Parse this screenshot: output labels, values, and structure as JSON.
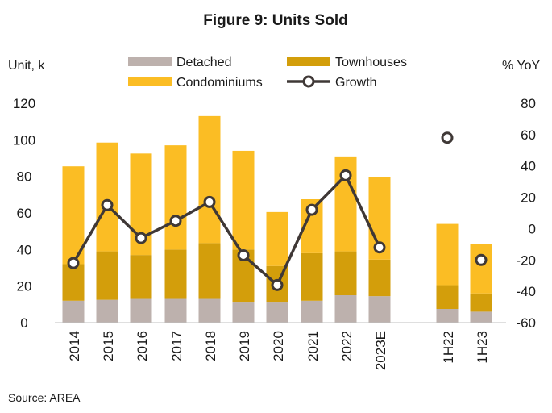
{
  "chart_data": {
    "type": "bar",
    "title": "Figure 9: Units Sold",
    "source": "Source: AREA",
    "left_axis": {
      "label": "Unit, k",
      "ylim": [
        0,
        120
      ],
      "ticks": [
        0,
        20,
        40,
        60,
        80,
        100,
        120
      ]
    },
    "right_axis": {
      "label": "% YoY",
      "ylim": [
        -60,
        80
      ],
      "ticks": [
        -60,
        -40,
        -20,
        0,
        20,
        40,
        60,
        80
      ]
    },
    "categories": [
      "2014",
      "2015",
      "2016",
      "2017",
      "2018",
      "2019",
      "2020",
      "2021",
      "2022",
      "2023E",
      "1H22",
      "1H23"
    ],
    "legend": [
      {
        "name": "Detached",
        "kind": "bar",
        "color": "#bdb1ad"
      },
      {
        "name": "Townhouses",
        "kind": "bar",
        "color": "#d39e0b"
      },
      {
        "name": "Condominiums",
        "kind": "bar",
        "color": "#fbbd24"
      },
      {
        "name": "Growth",
        "kind": "line-marker",
        "color": "#3f3836"
      }
    ],
    "series": [
      {
        "name": "Detached",
        "color": "#bdb1ad",
        "values": [
          12,
          12.5,
          13,
          13,
          13,
          11,
          11,
          12,
          15,
          14.5,
          7.5,
          6
        ]
      },
      {
        "name": "Townhouses",
        "color": "#d39e0b",
        "values": [
          20,
          26.5,
          24,
          27,
          30.5,
          29,
          20,
          26,
          24,
          20,
          13,
          10
        ]
      },
      {
        "name": "Condominiums",
        "color": "#fbbd24",
        "values": [
          53.5,
          59.5,
          55.5,
          57,
          69.5,
          54,
          29.5,
          29.5,
          51.5,
          45,
          33.5,
          27
        ]
      },
      {
        "name": "Growth",
        "axis": "right",
        "color": "#3f3836",
        "values": [
          -22,
          15,
          -6,
          5,
          17,
          -17,
          -36,
          12,
          34,
          -12,
          58,
          -20
        ],
        "connected": [
          true,
          true,
          true,
          true,
          true,
          true,
          true,
          true,
          true,
          true,
          false,
          false
        ]
      }
    ],
    "grid": false,
    "legend_position": "top"
  }
}
